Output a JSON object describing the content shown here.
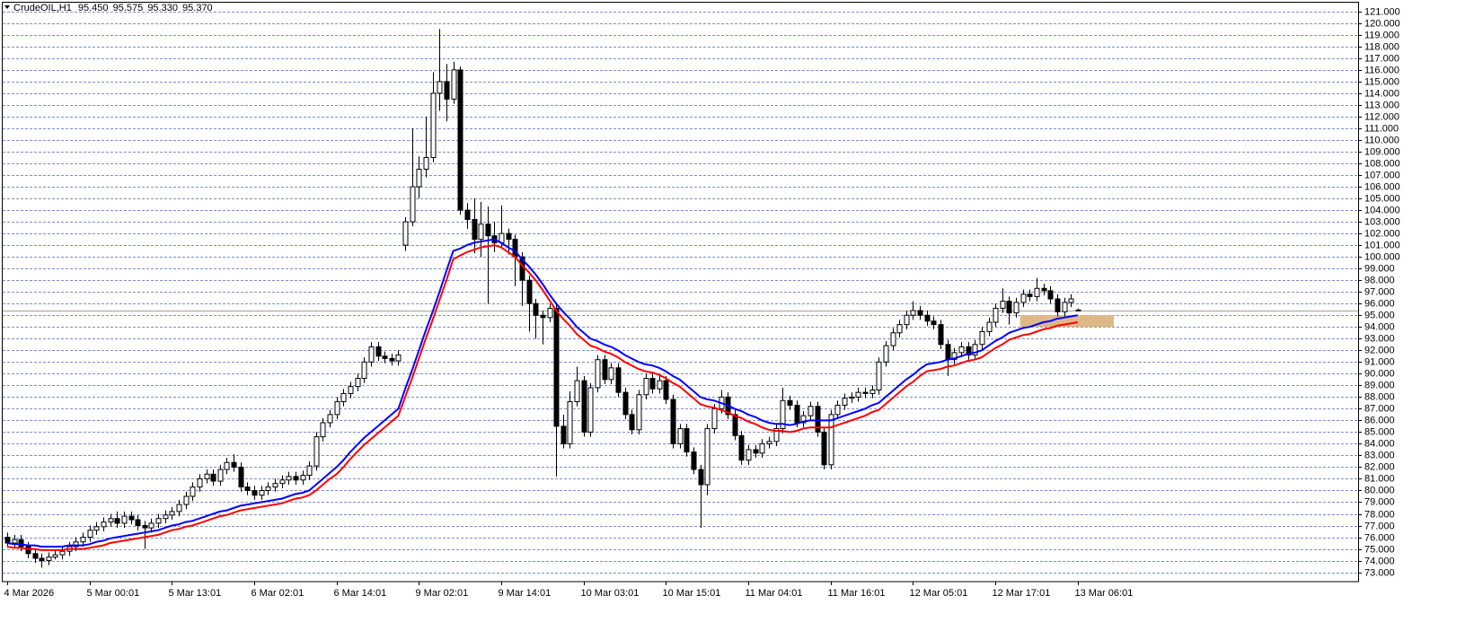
{
  "chart_data": {
    "type": "candlestick",
    "header": {
      "symbol": "CrudeOIL,H1",
      "ohlc": [
        {
          "value": 95.45,
          "label": "95.450"
        },
        {
          "value": 95.575,
          "label": "95.575"
        },
        {
          "value": 95.33,
          "label": "95.330"
        },
        {
          "value": 95.37,
          "label": "95.370"
        }
      ]
    },
    "categories": [
      "4 Mar 2026",
      null,
      null,
      null,
      null,
      null,
      null,
      null,
      null,
      null,
      null,
      null,
      "5 Mar 00:01",
      null,
      null,
      null,
      null,
      null,
      null,
      null,
      null,
      null,
      null,
      null,
      "5 Mar 13:01",
      null,
      null,
      null,
      null,
      null,
      null,
      null,
      null,
      null,
      null,
      null,
      "6 Mar 02:01",
      null,
      null,
      null,
      null,
      null,
      null,
      null,
      null,
      null,
      null,
      null,
      "6 Mar 14:01",
      null,
      null,
      null,
      null,
      null,
      null,
      null,
      null,
      null,
      null,
      null,
      "9 Mar 02:01",
      null,
      null,
      null,
      null,
      null,
      null,
      null,
      null,
      null,
      null,
      null,
      "9 Mar 14:01",
      null,
      null,
      null,
      null,
      null,
      null,
      null,
      null,
      null,
      null,
      null,
      "10 Mar 03:01",
      null,
      null,
      null,
      null,
      null,
      null,
      null,
      null,
      null,
      null,
      null,
      "10 Mar 15:01",
      null,
      null,
      null,
      null,
      null,
      null,
      null,
      null,
      null,
      null,
      null,
      "11 Mar 04:01",
      null,
      null,
      null,
      null,
      null,
      null,
      null,
      null,
      null,
      null,
      null,
      "11 Mar 16:01",
      null,
      null,
      null,
      null,
      null,
      null,
      null,
      null,
      null,
      null,
      null,
      "12 Mar 05:01",
      null,
      null,
      null,
      null,
      null,
      null,
      null,
      null,
      null,
      null,
      null,
      "12 Mar 17:01",
      null,
      null,
      null,
      null,
      null,
      null,
      null,
      null,
      null,
      null,
      null,
      "13 Mar 06:01"
    ],
    "open": [
      76.0,
      75.5,
      75.8,
      75.2,
      74.6,
      74.2,
      74.0,
      74.3,
      74.5,
      74.8,
      75.2,
      75.6,
      76.0,
      76.6,
      76.9,
      77.3,
      77.6,
      77.2,
      77.8,
      77.5,
      77.0,
      76.8,
      77.2,
      77.6,
      77.9,
      78.2,
      78.8,
      79.5,
      80.3,
      81.0,
      81.4,
      80.8,
      81.8,
      82.4,
      82.0,
      80.3,
      80.0,
      79.6,
      80.0,
      80.3,
      80.6,
      80.9,
      81.2,
      80.9,
      81.3,
      82.1,
      84.6,
      85.8,
      86.5,
      87.6,
      88.3,
      88.9,
      89.6,
      91.0,
      92.3,
      91.5,
      91.3,
      91.1,
      101,
      103,
      106,
      107.5,
      108.5,
      114,
      115,
      113.5,
      116,
      104,
      103.2,
      101.5,
      102.8,
      101.8,
      101.2,
      102,
      101.5,
      100,
      98,
      96,
      95,
      94.8,
      95.6,
      85.5,
      84,
      87.6,
      89.4,
      85,
      88.8,
      91.2,
      89.5,
      90.5,
      88.4,
      86.5,
      85.2,
      88.2,
      89.6,
      88.7,
      89.4,
      87.8,
      84,
      85.3,
      83.3,
      81.8,
      80.5,
      85.3,
      87,
      88,
      86.5,
      84.7,
      82.6,
      83.5,
      83.2,
      84,
      84.2,
      85.3,
      87.7,
      87.3,
      85.8,
      86.4,
      87.2,
      85,
      82.2,
      86.5,
      87.3,
      87.9,
      88,
      88.4,
      88.3,
      88.6,
      91,
      92.4,
      93.5,
      94.2,
      95,
      95.4,
      95,
      94.5,
      94.2,
      92.5,
      91.2,
      91.8,
      92.3,
      91.6,
      92.5,
      93.6,
      94.4,
      95.6,
      96.2,
      95.2,
      96.1,
      96.8,
      96.6,
      97.3,
      97.1,
      96.4,
      95.3,
      96.1,
      95.45
    ],
    "high": [
      76.4,
      76.2,
      76.2,
      75.6,
      75.0,
      74.6,
      74.7,
      74.9,
      75.2,
      75.6,
      76.0,
      76.4,
      77.0,
      77.3,
      77.7,
      78.0,
      78.2,
      78.2,
      78.2,
      77.9,
      77.4,
      77.6,
      78.0,
      78.3,
      78.6,
      79.2,
      79.9,
      80.7,
      81.4,
      81.8,
      81.8,
      82.2,
      82.8,
      83.1,
      82.4,
      80.7,
      80.4,
      80.4,
      80.7,
      81.0,
      81.3,
      81.6,
      81.6,
      81.7,
      82.5,
      85.0,
      86.2,
      86.9,
      88.0,
      88.7,
      89.3,
      90.0,
      91.4,
      92.7,
      92.7,
      91.9,
      91.7,
      92.0,
      103.4,
      111.0,
      108.6,
      112.0,
      115.8,
      119.5,
      116.5,
      116.7,
      116.3,
      104.6,
      105.0,
      104.7,
      104.3,
      103.0,
      104.4,
      102.4,
      101.9,
      100.4,
      98.4,
      96.4,
      95.4,
      96.0,
      96.0,
      86.5,
      88.5,
      90.6,
      89.8,
      89.2,
      91.6,
      91.6,
      90.9,
      90.9,
      88.8,
      86.9,
      88.6,
      90.0,
      90.0,
      89.8,
      89.8,
      88.2,
      85.7,
      85.7,
      83.7,
      82.2,
      85.7,
      87.4,
      88.6,
      88.4,
      86.9,
      85.1,
      83.9,
      83.9,
      84.4,
      84.6,
      85.7,
      88.8,
      88.1,
      87.7,
      86.8,
      87.6,
      87.6,
      85.4,
      86.9,
      87.7,
      88.3,
      88.4,
      88.8,
      88.8,
      89.0,
      91.4,
      92.8,
      93.9,
      94.6,
      95.4,
      96.2,
      95.8,
      95.4,
      94.9,
      94.6,
      92.9,
      92.2,
      92.7,
      92.7,
      92.9,
      94.0,
      94.8,
      96.0,
      97.3,
      96.6,
      96.5,
      97.2,
      97.2,
      98.2,
      97.7,
      97.5,
      96.8,
      96.5,
      96.8,
      95.575
    ],
    "low": [
      75.1,
      75.1,
      74.8,
      74.2,
      73.8,
      73.4,
      73.6,
      74.1,
      74.1,
      74.4,
      74.8,
      75.2,
      75.6,
      76.2,
      76.5,
      76.9,
      76.8,
      76.8,
      77.1,
      76.6,
      75.0,
      76.4,
      76.8,
      77.2,
      77.5,
      77.8,
      78.4,
      79.1,
      79.9,
      80.6,
      80.4,
      80.4,
      81.4,
      81.6,
      79.9,
      79.6,
      79.2,
      79.2,
      79.6,
      79.9,
      80.2,
      80.5,
      80.5,
      80.5,
      80.9,
      81.7,
      84.2,
      85.4,
      86.1,
      87.2,
      87.9,
      88.5,
      89.2,
      90.6,
      91.1,
      90.9,
      90.7,
      90.7,
      100.5,
      102.6,
      105.0,
      106.8,
      108.1,
      112.5,
      111.6,
      113.1,
      103.6,
      102.4,
      100.3,
      100.0,
      96.0,
      100.4,
      100.8,
      100.2,
      97.5,
      95.8,
      93.6,
      93.0,
      92.5,
      94.4,
      81.2,
      83.6,
      83.6,
      87.2,
      84.6,
      84.6,
      88.4,
      89.1,
      89.1,
      88.0,
      86.1,
      84.8,
      84.8,
      87.8,
      88.3,
      88.3,
      87.4,
      83.6,
      83.6,
      82.9,
      81.4,
      76.8,
      79.6,
      84.9,
      86.6,
      86.1,
      84.3,
      82.2,
      82.2,
      82.8,
      82.8,
      83.6,
      83.8,
      84.9,
      86.9,
      85.4,
      85.4,
      86.0,
      84.6,
      81.8,
      81.8,
      86.1,
      86.9,
      87.5,
      87.6,
      87.9,
      87.9,
      88.2,
      90.6,
      92.0,
      93.1,
      93.8,
      94.6,
      94.6,
      94.1,
      93.8,
      92.1,
      89.8,
      90.8,
      91.4,
      91.2,
      91.2,
      92.1,
      93.2,
      94.0,
      95.2,
      94.2,
      94.8,
      95.7,
      96.2,
      96.2,
      96.7,
      96.0,
      94.9,
      94.9,
      95.7,
      95.33
    ],
    "close": [
      75.5,
      75.8,
      75.2,
      74.6,
      74.2,
      74.0,
      74.3,
      74.5,
      74.8,
      75.2,
      75.6,
      76.0,
      76.6,
      76.9,
      77.3,
      77.6,
      77.2,
      77.8,
      77.5,
      77.0,
      76.8,
      77.2,
      77.6,
      77.9,
      78.2,
      78.8,
      79.5,
      80.3,
      81.0,
      81.4,
      80.8,
      81.8,
      82.4,
      82.0,
      80.3,
      80.0,
      79.6,
      80.0,
      80.3,
      80.6,
      80.9,
      81.2,
      80.9,
      81.3,
      82.1,
      84.6,
      85.8,
      86.5,
      87.6,
      88.3,
      88.9,
      89.6,
      91.0,
      92.3,
      91.5,
      91.3,
      91.1,
      91.6,
      103,
      106,
      107.5,
      108.5,
      114,
      115,
      113.5,
      116,
      104,
      103.2,
      101.5,
      102.8,
      101.8,
      101.2,
      102,
      101.5,
      100,
      98,
      96,
      95,
      94.8,
      95.6,
      85.5,
      84,
      87.6,
      89.4,
      85,
      88.8,
      91.2,
      89.5,
      90.5,
      88.4,
      86.5,
      85.2,
      88.2,
      89.6,
      88.7,
      89.4,
      87.8,
      84,
      85.3,
      83.3,
      81.8,
      80.5,
      85.3,
      87,
      88,
      86.5,
      84.7,
      82.6,
      83.5,
      83.2,
      84,
      84.2,
      85.3,
      87.7,
      87.3,
      85.8,
      86.4,
      87.2,
      85,
      82.2,
      86.5,
      87.3,
      87.9,
      88,
      88.4,
      88.3,
      88.6,
      91,
      92.4,
      93.5,
      94.2,
      95,
      95.4,
      95,
      94.5,
      94.2,
      92.5,
      91.2,
      91.8,
      92.3,
      91.6,
      92.5,
      93.6,
      94.4,
      95.6,
      96.2,
      95.2,
      96.1,
      96.8,
      96.6,
      97.3,
      97.1,
      96.4,
      95.3,
      96.1,
      96.4,
      95.37
    ],
    "series": [
      {
        "color": "#0000ff",
        "values": [
          75.5,
          75.4,
          75.4,
          75.3,
          75.3,
          75.2,
          75.2,
          75.2,
          75.2,
          75.3,
          75.3,
          75.3,
          75.4,
          75.6,
          75.7,
          75.9,
          76.0,
          76.1,
          76.2,
          76.3,
          76.4,
          76.5,
          76.6,
          76.8,
          77.0,
          77.1,
          77.3,
          77.4,
          77.6,
          77.8,
          78.0,
          78.2,
          78.3,
          78.5,
          78.7,
          78.8,
          78.9,
          79.0,
          79.1,
          79.2,
          79.3,
          79.5,
          79.7,
          79.8,
          80.0,
          80.5,
          81.0,
          81.5,
          82.0,
          82.6,
          83.3,
          83.9,
          84.5,
          85.0,
          85.5,
          86.0,
          86.5,
          87.0,
          88.7,
          90.3,
          92.0,
          93.7,
          95.3,
          97.0,
          98.8,
          100.5,
          100.7,
          101.0,
          101.2,
          101.3,
          101.4,
          101.5,
          101.2,
          100.8,
          100.5,
          99.8,
          99.2,
          98.5,
          97.7,
          96.8,
          96.0,
          95.3,
          94.7,
          94.0,
          93.5,
          93.0,
          92.8,
          92.5,
          92.3,
          92.0,
          91.6,
          91.3,
          91.0,
          90.8,
          90.7,
          90.5,
          90.2,
          89.8,
          89.5,
          89.0,
          88.5,
          88.0,
          87.8,
          87.7,
          87.5,
          87.3,
          87.0,
          86.8,
          86.5,
          86.3,
          86.0,
          85.8,
          85.7,
          85.7,
          85.6,
          85.7,
          85.9,
          86.0,
          86.0,
          86.0,
          86.0,
          86.2,
          86.4,
          86.6,
          86.8,
          87.0,
          87.3,
          87.5,
          88.0,
          88.5,
          89.0,
          89.5,
          89.9,
          90.4,
          90.8,
          90.9,
          91.0,
          91.2,
          91.3,
          91.5,
          91.7,
          91.8,
          92.0,
          92.4,
          92.8,
          93.1,
          93.5,
          93.7,
          93.9,
          94.0,
          94.2,
          94.4,
          94.5,
          94.7,
          94.8,
          94.9,
          95.0
        ]
      },
      {
        "color": "#ff0000",
        "values": [
          75.2,
          75.1,
          75.1,
          75.0,
          75.0,
          74.9,
          74.9,
          74.9,
          74.9,
          75.0,
          75.0,
          75.0,
          75.1,
          75.2,
          75.3,
          75.5,
          75.6,
          75.7,
          75.8,
          75.9,
          76.0,
          76.1,
          76.2,
          76.4,
          76.6,
          76.7,
          76.9,
          77.0,
          77.2,
          77.4,
          77.6,
          77.8,
          77.9,
          78.1,
          78.3,
          78.4,
          78.5,
          78.6,
          78.7,
          78.8,
          78.9,
          79.1,
          79.3,
          79.4,
          79.6,
          80.0,
          80.5,
          81.0,
          81.4,
          82.0,
          82.7,
          83.3,
          83.9,
          84.4,
          84.9,
          85.4,
          85.9,
          86.4,
          88.0,
          89.6,
          91.3,
          93.0,
          94.6,
          96.3,
          98.0,
          99.8,
          100.1,
          100.4,
          100.6,
          100.8,
          100.9,
          101.0,
          100.8,
          100.4,
          100.0,
          99.3,
          98.7,
          98.0,
          97.2,
          96.3,
          95.4,
          94.7,
          94.1,
          93.4,
          92.9,
          92.4,
          92.2,
          91.9,
          91.7,
          91.4,
          91.0,
          90.7,
          90.4,
          90.2,
          90.1,
          89.9,
          89.6,
          89.2,
          88.9,
          88.4,
          87.9,
          87.4,
          87.2,
          87.1,
          86.9,
          86.7,
          86.4,
          86.2,
          85.9,
          85.7,
          85.4,
          85.2,
          85.1,
          85.1,
          85.0,
          85.1,
          85.3,
          85.4,
          85.4,
          85.4,
          85.4,
          85.6,
          85.8,
          86.0,
          86.2,
          86.4,
          86.7,
          86.9,
          87.4,
          87.9,
          88.4,
          88.9,
          89.3,
          89.8,
          90.2,
          90.3,
          90.4,
          90.6,
          90.7,
          90.9,
          91.1,
          91.2,
          91.4,
          91.8,
          92.2,
          92.5,
          92.9,
          93.1,
          93.3,
          93.4,
          93.6,
          93.8,
          93.9,
          94.1,
          94.2,
          94.3,
          94.4
        ]
      }
    ],
    "zone": [
      94.0,
      95.0
    ],
    "zone_color": "#deb887",
    "ylim": [
      72.2,
      121.6
    ],
    "yticks": [
      {
        "value": 73,
        "label": "73.000"
      },
      {
        "value": 74,
        "label": "74.000"
      },
      {
        "value": 75,
        "label": "75.000"
      },
      {
        "value": 76,
        "label": "76.000"
      },
      {
        "value": 77,
        "label": "77.000"
      },
      {
        "value": 78,
        "label": "78.000"
      },
      {
        "value": 79,
        "label": "79.000"
      },
      {
        "value": 80,
        "label": "80.000"
      },
      {
        "value": 81,
        "label": "81.000"
      },
      {
        "value": 82,
        "label": "82.000"
      },
      {
        "value": 83,
        "label": "83.000"
      },
      {
        "value": 84,
        "label": "84.000"
      },
      {
        "value": 85,
        "label": "85.000"
      },
      {
        "value": 86,
        "label": "86.000"
      },
      {
        "value": 87,
        "label": "87.000"
      },
      {
        "value": 88,
        "label": "88.000"
      },
      {
        "value": 89,
        "label": "89.000"
      },
      {
        "value": 90,
        "label": "90.000"
      },
      {
        "value": 91,
        "label": "91.000"
      },
      {
        "value": 92,
        "label": "92.000"
      },
      {
        "value": 93,
        "label": "93.000"
      },
      {
        "value": 94,
        "label": "94.000"
      },
      {
        "value": 95,
        "label": "95.000"
      },
      {
        "value": 96,
        "label": "96.000"
      },
      {
        "value": 97,
        "label": "97.000"
      },
      {
        "value": 98,
        "label": "98.000"
      },
      {
        "value": 99,
        "label": "99.000"
      },
      {
        "value": 100,
        "label": "100.000"
      },
      {
        "value": 101,
        "label": "101.000"
      },
      {
        "value": 102,
        "label": "102.000"
      },
      {
        "value": 103,
        "label": "103.000"
      },
      {
        "value": 104,
        "label": "104.000"
      },
      {
        "value": 105,
        "label": "105.000"
      },
      {
        "value": 106,
        "label": "106.000"
      },
      {
        "value": 107,
        "label": "107.000"
      },
      {
        "value": 108,
        "label": "108.000"
      },
      {
        "value": 109,
        "label": "109.000"
      },
      {
        "value": 110,
        "label": "110.000"
      },
      {
        "value": 111,
        "label": "111.000"
      },
      {
        "value": 112,
        "label": "112.000"
      },
      {
        "value": 113,
        "label": "113.000"
      },
      {
        "value": 114,
        "label": "114.000"
      },
      {
        "value": 115,
        "label": "115.000"
      },
      {
        "value": 116,
        "label": "116.000"
      },
      {
        "value": 117,
        "label": "117.000"
      },
      {
        "value": 118,
        "label": "118.000"
      },
      {
        "value": 119,
        "label": "119.000"
      },
      {
        "value": 120,
        "label": "120.000"
      },
      {
        "value": 121,
        "label": "121.000"
      }
    ],
    "grid": true
  }
}
